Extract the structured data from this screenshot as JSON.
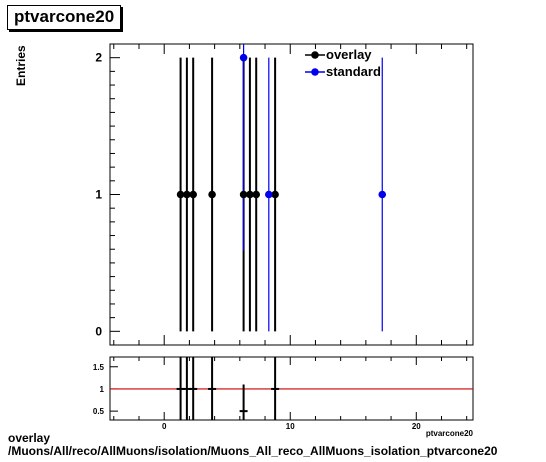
{
  "title": "ptvarcone20",
  "ylabel": "Entries",
  "footer": {
    "line1": "overlay",
    "line2": "/Muons/All/reco/AllMuons/isolation/Muons_All_reco_AllMuons_isolation_ptvarcone20"
  },
  "colors": {
    "overlay": "#000000",
    "standard": "#0000ee",
    "ratio_line": "#cc0000"
  },
  "chart_data": [
    {
      "type": "scatter",
      "title": "ptvarcone20",
      "ylabel": "Entries",
      "xlim": [
        -4.3,
        24.5
      ],
      "ylim": [
        -0.1,
        2.1
      ],
      "yticks": [
        0,
        1,
        2
      ],
      "legend": {
        "placement": "top-right"
      },
      "series": [
        {
          "name": "overlay",
          "color": "#000000",
          "points": [
            {
              "x": 1.3,
              "y": 1,
              "err": 1
            },
            {
              "x": 1.8,
              "y": 1,
              "err": 1
            },
            {
              "x": 2.3,
              "y": 1,
              "err": 1
            },
            {
              "x": 3.8,
              "y": 1,
              "err": 1
            },
            {
              "x": 6.3,
              "y": 1,
              "err": 1
            },
            {
              "x": 6.8,
              "y": 1,
              "err": 1
            },
            {
              "x": 7.3,
              "y": 1,
              "err": 1
            },
            {
              "x": 8.8,
              "y": 1,
              "err": 1
            }
          ]
        },
        {
          "name": "standard",
          "color": "#0000ee",
          "points": [
            {
              "x": 6.3,
              "y": 2,
              "err": 1.41
            },
            {
              "x": 8.3,
              "y": 1,
              "err": 1
            },
            {
              "x": 17.3,
              "y": 1,
              "err": 1
            }
          ]
        }
      ]
    },
    {
      "type": "scatter",
      "xlim": [
        -4.3,
        24.5
      ],
      "ylim": [
        0.3,
        1.72
      ],
      "yticks": [
        0.5,
        1,
        1.5
      ],
      "xticks": [
        0,
        10,
        20
      ],
      "xlabel": "ptvarcone20",
      "reference_line": 1,
      "points": [
        {
          "x": 1.3,
          "y": 1,
          "err": 1
        },
        {
          "x": 1.8,
          "y": 1,
          "err": 1
        },
        {
          "x": 2.3,
          "y": 1,
          "err": 1
        },
        {
          "x": 3.8,
          "y": 1,
          "err": 1
        },
        {
          "x": 6.3,
          "y": 0.5,
          "err": 0.6
        },
        {
          "x": 8.8,
          "y": 1,
          "err": 1
        }
      ]
    }
  ]
}
